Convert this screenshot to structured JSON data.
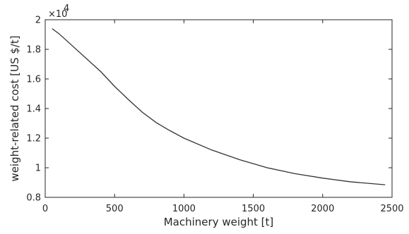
{
  "chart_data": {
    "type": "line",
    "title": "",
    "xlabel": "Machinery weight [t]",
    "ylabel": "weight-related cost [US $/t]",
    "y_exponent_label": "×10",
    "y_exponent_power": "4",
    "xlim": [
      0,
      2500
    ],
    "ylim": [
      8000,
      20000
    ],
    "x_ticks": [
      0,
      500,
      1000,
      1500,
      2000,
      2500
    ],
    "x_tick_labels": [
      "0",
      "500",
      "1000",
      "1500",
      "2000",
      "2500"
    ],
    "y_ticks": [
      8000,
      10000,
      12000,
      14000,
      16000,
      18000,
      20000
    ],
    "y_tick_labels": [
      "0.8",
      "1",
      "1.2",
      "1.4",
      "1.6",
      "1.8",
      "2"
    ],
    "grid": false,
    "line_color": "#333333",
    "series": [
      {
        "x": [
          50,
          100,
          200,
          300,
          400,
          500,
          600,
          700,
          800,
          900,
          1000,
          1200,
          1400,
          1600,
          1800,
          2000,
          2200,
          2450
        ],
        "values": [
          19400,
          19050,
          18200,
          17350,
          16500,
          15500,
          14600,
          13750,
          13050,
          12500,
          12000,
          11200,
          10550,
          10000,
          9600,
          9300,
          9050,
          8850
        ]
      }
    ]
  }
}
